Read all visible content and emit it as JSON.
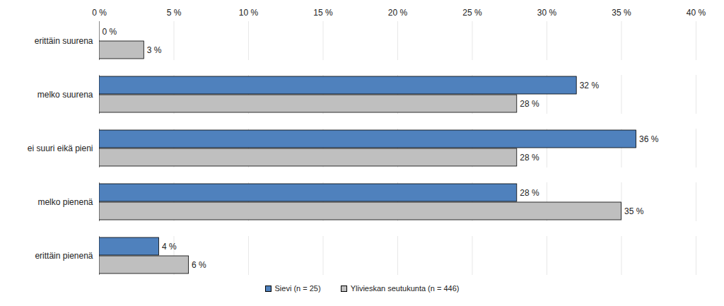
{
  "chart_data": {
    "type": "bar",
    "orientation": "horizontal",
    "categories": [
      "erittäin suurena",
      "melko suurena",
      "ei suuri eikä pieni",
      "melko pienenä",
      "erittäin pienenä"
    ],
    "series": [
      {
        "name": "Sievi (n = 25)",
        "color": "#4f81bd",
        "values": [
          0,
          32,
          36,
          28,
          4
        ],
        "value_labels": [
          "0 %",
          "32 %",
          "36 %",
          "28 %",
          "4 %"
        ]
      },
      {
        "name": "Ylivieskan seutukunta (n = 446)",
        "color": "#bfbfbf",
        "values": [
          3,
          28,
          28,
          35,
          6
        ],
        "value_labels": [
          "3 %",
          "28 %",
          "28 %",
          "35 %",
          "6 %"
        ]
      }
    ],
    "xlim": [
      0,
      40
    ],
    "xticks": [
      {
        "value": 0,
        "label": "0 %"
      },
      {
        "value": 5,
        "label": "5 %"
      },
      {
        "value": 10,
        "label": "10 %"
      },
      {
        "value": 15,
        "label": "15 %"
      },
      {
        "value": 20,
        "label": "20 %"
      },
      {
        "value": 25,
        "label": "25 %"
      },
      {
        "value": 30,
        "label": "30 %"
      },
      {
        "value": 35,
        "label": "35 %"
      },
      {
        "value": 40,
        "label": "40 %"
      }
    ],
    "grid": true,
    "legend": "bottom",
    "data_labels": true
  }
}
